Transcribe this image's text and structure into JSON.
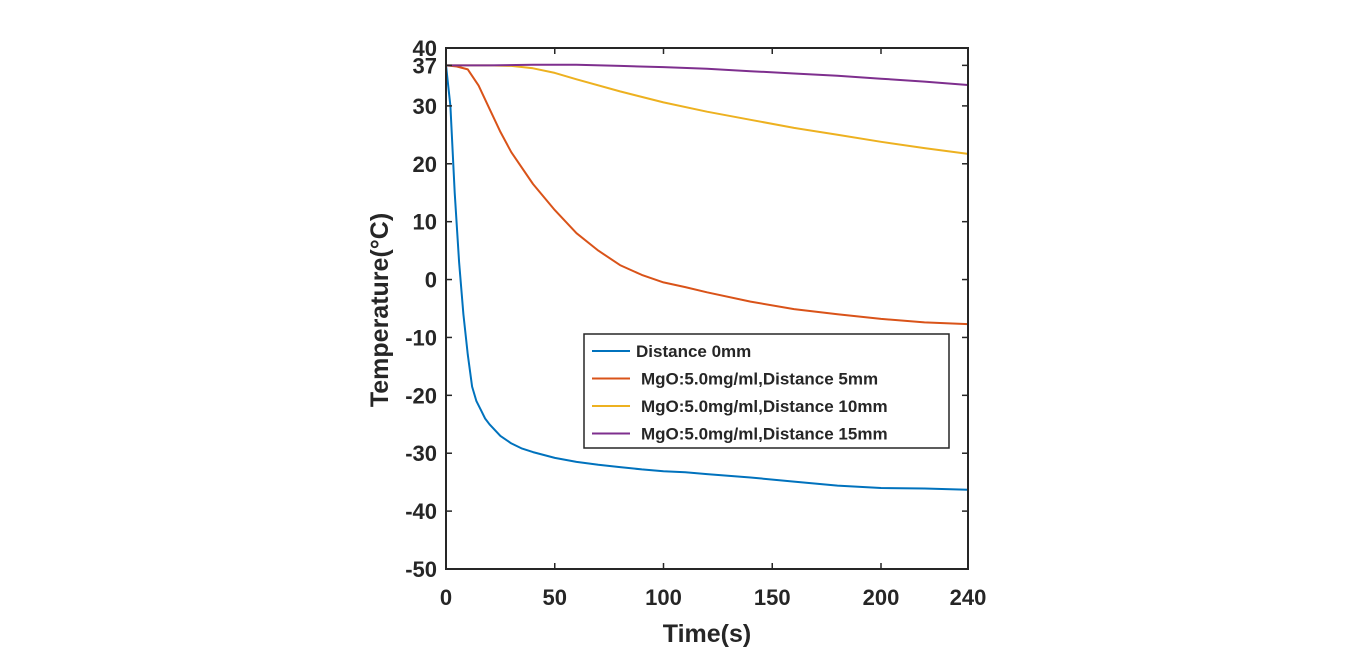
{
  "chart_data": {
    "type": "line",
    "title": "",
    "xlabel": "Time(s)",
    "ylabel": "Temperature(°C)",
    "xlim": [
      0,
      240
    ],
    "ylim": [
      -50,
      40
    ],
    "xticks": [
      0,
      50,
      100,
      150,
      200,
      240
    ],
    "yticks": [
      -50,
      -40,
      -30,
      -20,
      -10,
      0,
      10,
      20,
      30,
      37,
      40
    ],
    "grid": false,
    "legend_position": "lower-right",
    "series": [
      {
        "name": "Distance 0mm",
        "color": "#0072BD",
        "x": [
          0,
          2,
          4,
          6,
          8,
          10,
          12,
          14,
          16,
          18,
          20,
          25,
          30,
          35,
          40,
          50,
          60,
          70,
          80,
          90,
          100,
          110,
          120,
          140,
          160,
          180,
          200,
          220,
          240
        ],
        "y": [
          37,
          30,
          15,
          3,
          -6,
          -13,
          -18.5,
          -21,
          -22.5,
          -24,
          -25,
          -27,
          -28.3,
          -29.2,
          -29.8,
          -30.8,
          -31.5,
          -32,
          -32.4,
          -32.8,
          -33.1,
          -33.3,
          -33.6,
          -34.2,
          -34.9,
          -35.6,
          -36,
          -36.1,
          -36.3
        ]
      },
      {
        "name": "MgO:5.0mg/ml,Distance 5mm",
        "color": "#D95319",
        "x": [
          0,
          5,
          10,
          15,
          20,
          25,
          30,
          40,
          50,
          60,
          70,
          80,
          90,
          100,
          110,
          120,
          140,
          160,
          180,
          200,
          220,
          240
        ],
        "y": [
          37,
          36.8,
          36.3,
          33.5,
          29.5,
          25.5,
          22,
          16.5,
          12,
          8,
          5,
          2.5,
          0.8,
          -0.5,
          -1.3,
          -2.2,
          -3.8,
          -5.1,
          -6,
          -6.8,
          -7.4,
          -7.7
        ]
      },
      {
        "name": "MgO:5.0mg/ml,Distance 10mm",
        "color": "#EDB120",
        "x": [
          0,
          10,
          20,
          30,
          40,
          50,
          60,
          80,
          100,
          120,
          140,
          160,
          180,
          200,
          220,
          240
        ],
        "y": [
          37,
          37,
          37,
          36.9,
          36.5,
          35.7,
          34.6,
          32.5,
          30.6,
          29,
          27.6,
          26.2,
          25,
          23.8,
          22.7,
          21.7
        ]
      },
      {
        "name": "MgO:5.0mg/ml,Distance 15mm",
        "color": "#7E2F8E",
        "x": [
          0,
          20,
          40,
          60,
          80,
          100,
          120,
          140,
          160,
          180,
          200,
          220,
          240
        ],
        "y": [
          37,
          37,
          37.1,
          37.1,
          36.9,
          36.7,
          36.4,
          36,
          35.6,
          35.2,
          34.7,
          34.2,
          33.6
        ]
      }
    ]
  }
}
